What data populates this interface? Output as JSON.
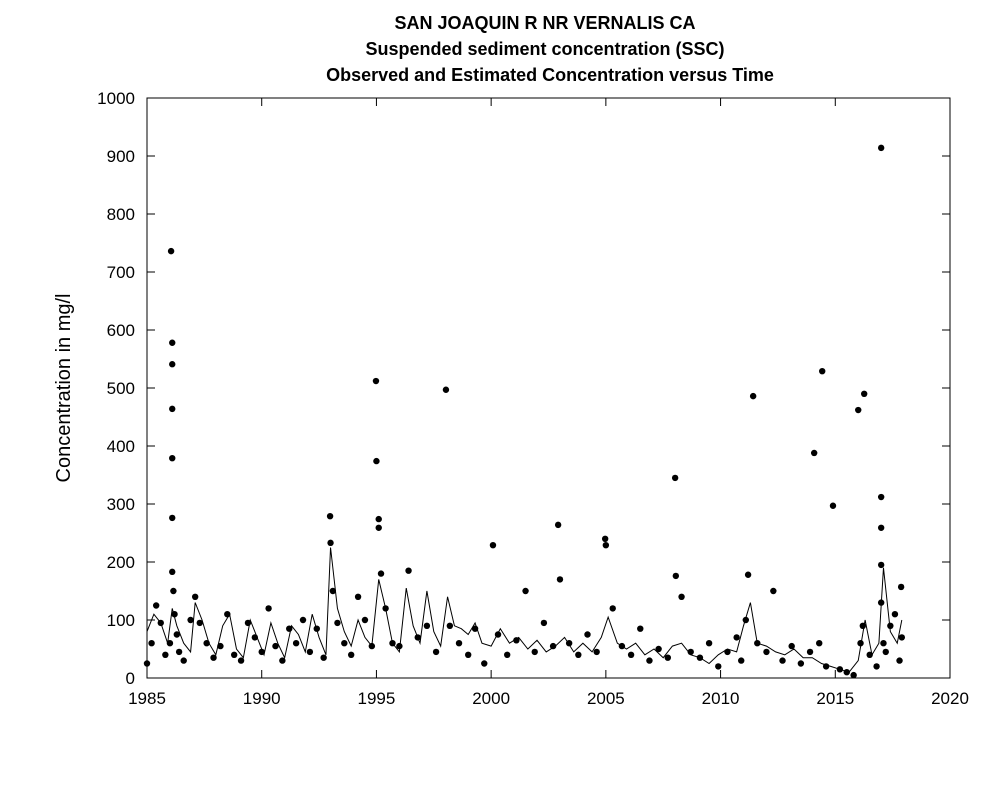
{
  "chart_data": {
    "type": "scatter",
    "title": [
      "SAN JOAQUIN R NR VERNALIS CA",
      "Suspended sediment concentration (SSC)",
      "Observed and Estimated Concentration versus Time"
    ],
    "y_label": "Concentration in mg/l",
    "xlim": [
      1985,
      2020
    ],
    "xticks": [
      1985,
      1990,
      1995,
      2000,
      2005,
      2010,
      2015,
      2020
    ],
    "ylim": [
      0,
      1000
    ],
    "yticks": [
      0,
      100,
      200,
      300,
      400,
      500,
      600,
      700,
      800,
      900,
      1000
    ],
    "series": [
      {
        "type": "points",
        "color": "#000000",
        "x": [
          1985.0,
          1985.2,
          1985.4,
          1985.6,
          1985.8,
          1986.0,
          1986.05,
          1986.1,
          1986.1,
          1986.1,
          1986.1,
          1986.1,
          1986.1,
          1986.15,
          1986.2,
          1986.3,
          1986.4,
          1986.6,
          1986.9,
          1987.1,
          1987.3,
          1987.6,
          1987.9,
          1988.2,
          1988.5,
          1988.8,
          1989.1,
          1989.4,
          1989.7,
          1990.0,
          1990.3,
          1990.6,
          1990.9,
          1991.2,
          1991.5,
          1991.8,
          1992.1,
          1992.4,
          1992.7,
          1992.98,
          1993.0,
          1993.1,
          1993.3,
          1993.6,
          1993.9,
          1994.2,
          1994.5,
          1994.8,
          1994.98,
          1995.0,
          1995.1,
          1995.1,
          1995.2,
          1995.4,
          1995.7,
          1996.0,
          1996.4,
          1996.8,
          1997.2,
          1997.6,
          1998.03,
          1998.2,
          1998.6,
          1999.0,
          1999.3,
          1999.7,
          2000.08,
          2000.3,
          2000.7,
          2001.1,
          2001.5,
          2001.9,
          2002.3,
          2002.7,
          2002.92,
          2003.0,
          2003.4,
          2003.8,
          2004.2,
          2004.6,
          2004.97,
          2005.0,
          2005.3,
          2005.7,
          2006.1,
          2006.5,
          2006.9,
          2007.3,
          2007.7,
          2008.02,
          2008.05,
          2008.3,
          2008.7,
          2009.1,
          2009.5,
          2009.9,
          2010.3,
          2010.7,
          2010.9,
          2011.1,
          2011.2,
          2011.42,
          2011.6,
          2012.0,
          2012.3,
          2012.7,
          2013.1,
          2013.5,
          2013.9,
          2014.08,
          2014.3,
          2014.43,
          2014.6,
          2014.9,
          2015.2,
          2015.5,
          2015.8,
          2016.0,
          2016.1,
          2016.2,
          2016.26,
          2016.5,
          2016.8,
          2017.0,
          2017.0,
          2017.0,
          2017.0,
          2017.0,
          2017.1,
          2017.2,
          2017.4,
          2017.6,
          2017.8,
          2017.87,
          2017.9
        ],
        "values": [
          25,
          60,
          125,
          95,
          40,
          60,
          736,
          578,
          541,
          464,
          379,
          276,
          183,
          150,
          110,
          75,
          45,
          30,
          100,
          140,
          95,
          60,
          35,
          55,
          110,
          40,
          30,
          95,
          70,
          45,
          120,
          55,
          30,
          85,
          60,
          100,
          45,
          85,
          35,
          279,
          233,
          150,
          95,
          60,
          40,
          140,
          100,
          55,
          512,
          374,
          274,
          259,
          180,
          120,
          60,
          55,
          185,
          70,
          90,
          45,
          497,
          90,
          60,
          40,
          85,
          25,
          229,
          75,
          40,
          65,
          150,
          45,
          95,
          55,
          264,
          170,
          60,
          40,
          75,
          45,
          240,
          229,
          120,
          55,
          40,
          85,
          30,
          50,
          35,
          345,
          176,
          140,
          45,
          35,
          60,
          20,
          45,
          70,
          30,
          100,
          178,
          486,
          60,
          45,
          150,
          30,
          55,
          25,
          45,
          388,
          60,
          529,
          20,
          297,
          15,
          10,
          5,
          462,
          60,
          90,
          490,
          40,
          20,
          914,
          312,
          259,
          195,
          130,
          60,
          45,
          90,
          110,
          30,
          157,
          70
        ]
      },
      {
        "type": "line",
        "color": "#000000",
        "x": [
          1985.0,
          1985.3,
          1985.6,
          1985.9,
          1986.1,
          1986.3,
          1986.6,
          1986.9,
          1987.1,
          1987.4,
          1987.7,
          1988.0,
          1988.3,
          1988.6,
          1988.9,
          1989.2,
          1989.5,
          1989.8,
          1990.1,
          1990.4,
          1990.7,
          1991.0,
          1991.3,
          1991.6,
          1991.9,
          1992.2,
          1992.5,
          1992.8,
          1993.0,
          1993.3,
          1993.6,
          1993.9,
          1994.2,
          1994.5,
          1994.8,
          1995.1,
          1995.4,
          1995.7,
          1996.0,
          1996.3,
          1996.6,
          1996.9,
          1997.2,
          1997.5,
          1997.8,
          1998.1,
          1998.4,
          1998.7,
          1999.0,
          1999.3,
          1999.6,
          2000.0,
          2000.4,
          2000.8,
          2001.2,
          2001.6,
          2002.0,
          2002.4,
          2002.8,
          2003.2,
          2003.6,
          2004.0,
          2004.4,
          2004.8,
          2005.1,
          2005.5,
          2005.9,
          2006.3,
          2006.7,
          2007.1,
          2007.5,
          2007.9,
          2008.3,
          2008.7,
          2009.1,
          2009.5,
          2009.9,
          2010.3,
          2010.7,
          2011.0,
          2011.3,
          2011.6,
          2012.0,
          2012.4,
          2012.8,
          2013.2,
          2013.6,
          2014.0,
          2014.4,
          2014.8,
          2015.2,
          2015.6,
          2016.0,
          2016.3,
          2016.6,
          2016.9,
          2017.1,
          2017.4,
          2017.7,
          2017.9
        ],
        "values": [
          80,
          110,
          95,
          60,
          120,
          90,
          60,
          45,
          130,
          100,
          60,
          40,
          90,
          110,
          50,
          35,
          100,
          70,
          40,
          95,
          60,
          35,
          90,
          75,
          45,
          110,
          70,
          40,
          225,
          120,
          80,
          55,
          100,
          70,
          55,
          170,
          120,
          60,
          45,
          155,
          90,
          60,
          150,
          80,
          55,
          140,
          90,
          85,
          75,
          95,
          60,
          55,
          85,
          60,
          70,
          50,
          65,
          45,
          55,
          70,
          45,
          60,
          45,
          70,
          105,
          60,
          50,
          60,
          40,
          50,
          35,
          55,
          60,
          40,
          35,
          25,
          40,
          50,
          45,
          90,
          130,
          60,
          55,
          45,
          40,
          50,
          35,
          35,
          25,
          20,
          15,
          10,
          30,
          100,
          40,
          60,
          190,
          80,
          60,
          100
        ]
      }
    ]
  }
}
